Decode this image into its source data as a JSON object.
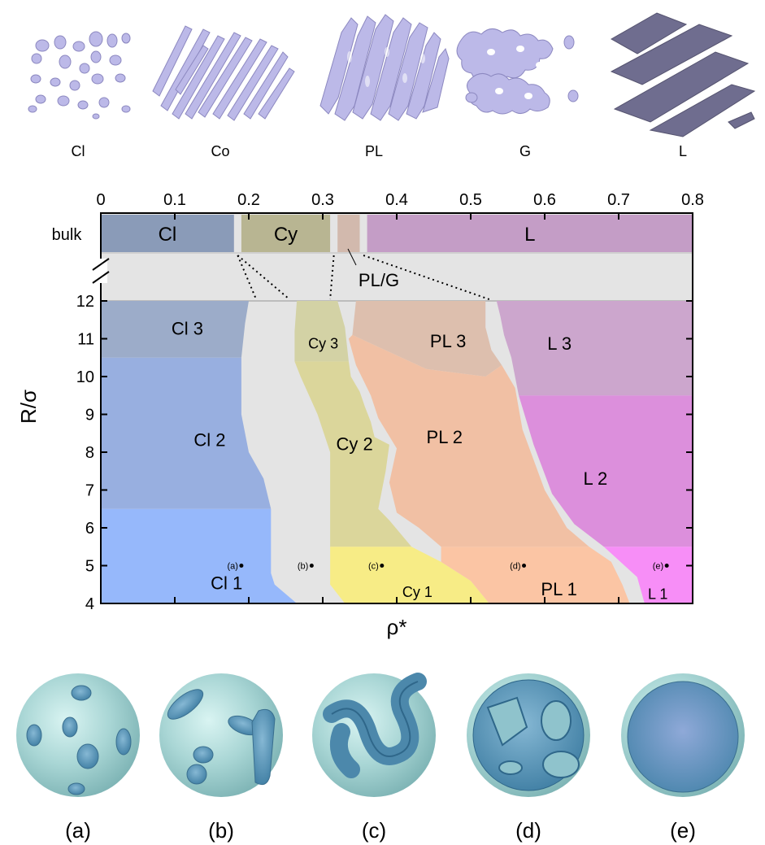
{
  "top_panels": [
    {
      "label": "Cl",
      "icon": "sphere-clusters-icon"
    },
    {
      "label": "Co",
      "icon": "columns-icon"
    },
    {
      "label": "PL",
      "icon": "perforated-lamellae-icon"
    },
    {
      "label": "G",
      "icon": "gyroid-icon"
    },
    {
      "label": "L",
      "icon": "lamellae-icon"
    }
  ],
  "bottom_panels": [
    {
      "label": "(a)",
      "icon": "sphere-clusters-in-sphere-icon"
    },
    {
      "label": "(b)",
      "icon": "short-cylinders-in-sphere-icon"
    },
    {
      "label": "(c)",
      "icon": "cylinders-in-sphere-icon"
    },
    {
      "label": "(d)",
      "icon": "perforated-lamella-in-sphere-icon"
    },
    {
      "label": "(e)",
      "icon": "spherical-lamella-icon"
    }
  ],
  "chart_data": {
    "type": "phase-diagram",
    "xlabel": "ρ*",
    "ylabel": "R/σ",
    "xlim": [
      0,
      0.8
    ],
    "ylim": [
      4,
      12
    ],
    "x_ticks": [
      "0",
      "0.1",
      "0.2",
      "0.3",
      "0.4",
      "0.5",
      "0.6",
      "0.7",
      "0.8"
    ],
    "y_ticks": [
      "4",
      "5",
      "6",
      "7",
      "8",
      "9",
      "10",
      "11",
      "12"
    ],
    "axis_break": true,
    "bulk": {
      "label": "bulk",
      "regions": [
        {
          "label": "Cl",
          "x": [
            0.0,
            0.18
          ],
          "color": "#8a9bb8"
        },
        {
          "label": "Cy",
          "x": [
            0.19,
            0.31
          ],
          "color": "#b8b592"
        },
        {
          "label": "",
          "x": [
            0.32,
            0.35
          ],
          "color": "#d2b9ad"
        },
        {
          "label": "L",
          "x": [
            0.36,
            0.8
          ],
          "color": "#c49dc6"
        }
      ],
      "pl_g_label": "PL/G"
    },
    "regions": [
      {
        "label": "Cl 3",
        "color": "#9cacc9",
        "poly": [
          [
            0,
            12
          ],
          [
            0.2,
            12
          ],
          [
            0.195,
            11.4
          ],
          [
            0.19,
            10.5
          ],
          [
            0,
            10.5
          ]
        ]
      },
      {
        "label": "Cl 2",
        "color": "#98afe0",
        "poly": [
          [
            0,
            10.5
          ],
          [
            0.19,
            10.5
          ],
          [
            0.19,
            9.0
          ],
          [
            0.2,
            8.0
          ],
          [
            0.22,
            7.3
          ],
          [
            0.23,
            6.5
          ],
          [
            0,
            6.5
          ]
        ]
      },
      {
        "label": "Cl 1",
        "color": "#96b8fb",
        "poly": [
          [
            0,
            6.5
          ],
          [
            0.23,
            6.5
          ],
          [
            0.23,
            4.8
          ],
          [
            0.235,
            4.5
          ],
          [
            0.265,
            4.0
          ],
          [
            0,
            4.0
          ]
        ]
      },
      {
        "label": "Cy 3",
        "color": "#d3d2a5",
        "poly": [
          [
            0.265,
            12
          ],
          [
            0.32,
            12
          ],
          [
            0.33,
            11.3
          ],
          [
            0.335,
            10.4
          ],
          [
            0.262,
            10.4
          ],
          [
            0.262,
            11.2
          ]
        ]
      },
      {
        "label": "Cy 2",
        "color": "#dbd69b",
        "poly": [
          [
            0.262,
            10.4
          ],
          [
            0.335,
            10.4
          ],
          [
            0.338,
            10.0
          ],
          [
            0.35,
            9.6
          ],
          [
            0.357,
            9.2
          ],
          [
            0.365,
            8.8
          ],
          [
            0.37,
            8.4
          ],
          [
            0.39,
            8.2
          ],
          [
            0.385,
            7.5
          ],
          [
            0.375,
            6.5
          ],
          [
            0.39,
            6.2
          ],
          [
            0.42,
            5.5
          ],
          [
            0.31,
            5.5
          ],
          [
            0.31,
            6.6
          ],
          [
            0.31,
            8.0
          ],
          [
            0.293,
            9.0
          ],
          [
            0.27,
            10.0
          ]
        ]
      },
      {
        "label": "Cy 1",
        "color": "#f7ec86",
        "poly": [
          [
            0.31,
            5.5
          ],
          [
            0.42,
            5.5
          ],
          [
            0.46,
            5.1
          ],
          [
            0.5,
            4.6
          ],
          [
            0.525,
            4.0
          ],
          [
            0.33,
            4.0
          ],
          [
            0.31,
            4.5
          ]
        ]
      },
      {
        "label": "PL 3",
        "color": "#ddbfae",
        "poly": [
          [
            0.345,
            12
          ],
          [
            0.52,
            12
          ],
          [
            0.52,
            11.3
          ],
          [
            0.528,
            10.7
          ],
          [
            0.542,
            10.3
          ],
          [
            0.52,
            10.0
          ],
          [
            0.44,
            10.2
          ],
          [
            0.34,
            11.1
          ]
        ]
      },
      {
        "label": "PL 2",
        "color": "#f1c0a4",
        "poly": [
          [
            0.34,
            11.1
          ],
          [
            0.44,
            10.2
          ],
          [
            0.52,
            10.0
          ],
          [
            0.542,
            10.3
          ],
          [
            0.56,
            9.7
          ],
          [
            0.57,
            8.6
          ],
          [
            0.6,
            7.0
          ],
          [
            0.63,
            6.0
          ],
          [
            0.66,
            5.5
          ],
          [
            0.46,
            5.5
          ],
          [
            0.43,
            6.0
          ],
          [
            0.4,
            6.4
          ],
          [
            0.39,
            7.2
          ],
          [
            0.4,
            8.1
          ],
          [
            0.375,
            8.9
          ],
          [
            0.365,
            9.5
          ],
          [
            0.345,
            10.3
          ],
          [
            0.335,
            11.0
          ]
        ]
      },
      {
        "label": "PL 1",
        "color": "#fbc5a4",
        "poly": [
          [
            0.46,
            5.5
          ],
          [
            0.66,
            5.5
          ],
          [
            0.69,
            5.1
          ],
          [
            0.705,
            4.5
          ],
          [
            0.715,
            4.0
          ],
          [
            0.525,
            4.0
          ],
          [
            0.5,
            4.6
          ],
          [
            0.46,
            5.1
          ]
        ]
      },
      {
        "label": "L 3",
        "color": "#cca6cd",
        "poly": [
          [
            0.535,
            12
          ],
          [
            0.8,
            12
          ],
          [
            0.8,
            9.5
          ],
          [
            0.565,
            9.5
          ],
          [
            0.555,
            10.5
          ],
          [
            0.545,
            11.1
          ],
          [
            0.54,
            11.6
          ]
        ]
      },
      {
        "label": "L 2",
        "color": "#dc8fdc",
        "poly": [
          [
            0.565,
            9.5
          ],
          [
            0.8,
            9.5
          ],
          [
            0.8,
            5.5
          ],
          [
            0.68,
            5.5
          ],
          [
            0.64,
            6.1
          ],
          [
            0.61,
            6.9
          ],
          [
            0.585,
            8.2
          ]
        ]
      },
      {
        "label": "L 1",
        "color": "#f78ef7",
        "poly": [
          [
            0.68,
            5.5
          ],
          [
            0.8,
            5.5
          ],
          [
            0.8,
            4.0
          ],
          [
            0.735,
            4.0
          ],
          [
            0.725,
            4.7
          ]
        ]
      }
    ],
    "points": [
      {
        "label": "(a)",
        "x": 0.19,
        "y": 5
      },
      {
        "label": "(b)",
        "x": 0.285,
        "y": 5
      },
      {
        "label": "(c)",
        "x": 0.38,
        "y": 5
      },
      {
        "label": "(d)",
        "x": 0.572,
        "y": 5
      },
      {
        "label": "(e)",
        "x": 0.765,
        "y": 5
      }
    ],
    "colors": {
      "gap": "#e4e4e4",
      "frame": "#000000",
      "top_structure": "#b9b6e6",
      "lamella": "#6d6c8c",
      "sphere_shell": "#9fcfd0",
      "sphere_core": "#5b97b8"
    }
  }
}
